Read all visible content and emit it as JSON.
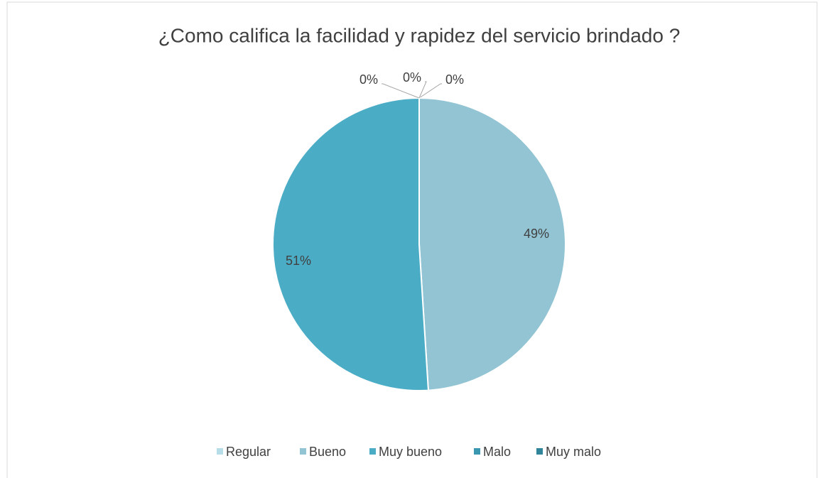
{
  "chart_data": {
    "type": "pie",
    "title": "¿Como califica la facilidad y rapidez del servicio brindado ?",
    "categories": [
      "Regular",
      "Bueno",
      "Muy bueno",
      "Malo",
      "Muy malo"
    ],
    "values": [
      0,
      49,
      51,
      0,
      0
    ],
    "value_labels": [
      "0%",
      "49%",
      "51%",
      "0%",
      "0%"
    ],
    "colors": [
      "#b7dde8",
      "#92c4d4",
      "#4bacc6",
      "#3b97b0",
      "#31859b"
    ],
    "legend": "bottom"
  }
}
